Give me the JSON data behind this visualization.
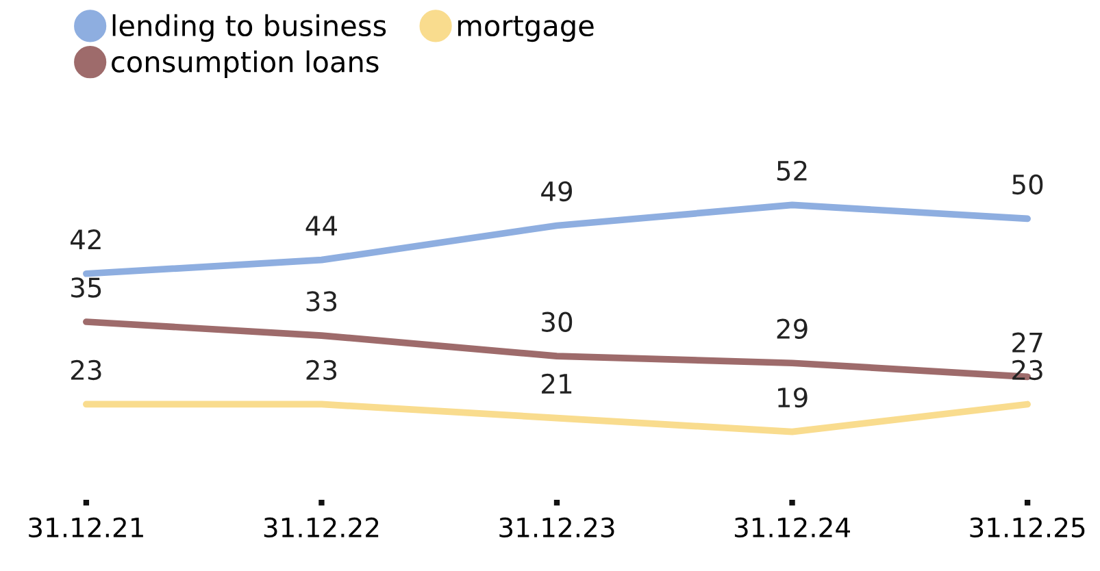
{
  "chart_data": {
    "type": "line",
    "categories": [
      "31.12.21",
      "31.12.22",
      "31.12.23",
      "31.12.24",
      "31.12.25"
    ],
    "series": [
      {
        "name": "lending to business",
        "color": "#8eaee0",
        "values": [
          42,
          44,
          49,
          52,
          50
        ]
      },
      {
        "name": "consumption loans",
        "color": "#9e6b6b",
        "values": [
          35,
          33,
          30,
          29,
          27
        ]
      },
      {
        "name": "mortgage",
        "color": "#f9dc8e",
        "values": [
          23,
          23,
          21,
          19,
          23
        ]
      }
    ],
    "data_labels": true,
    "legend": "top left",
    "grid": false,
    "marker": "none",
    "line_style": "solid"
  }
}
